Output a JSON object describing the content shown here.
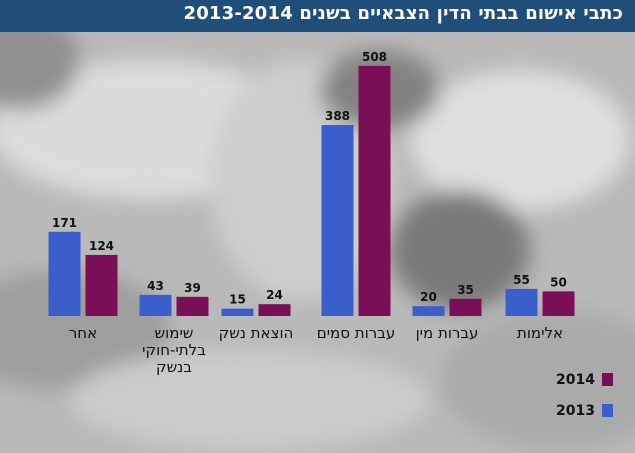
{
  "title": "כתבי אישום בבתי הדין הצבאיים בשנים 2013-2014",
  "colors": {
    "series_2013": "#3a5fcd",
    "series_2014": "#7b0f57",
    "title_bar": "#1f4e7a",
    "background": "#bdbdbd"
  },
  "chart_data": {
    "type": "bar",
    "title": "כתבי אישום בבתי הדין הצבאיים בשנים 2013-2014",
    "categories": [
      [
        "אחר"
      ],
      [
        "שימוש",
        "בלתי-חוקי",
        "בנשק"
      ],
      [
        "הוצאת נשק"
      ],
      [
        "עברות סמים"
      ],
      [
        "עברות מין"
      ],
      [
        "אלימות"
      ]
    ],
    "series": [
      {
        "name": "2013",
        "values": [
          171,
          43,
          15,
          388,
          20,
          55
        ]
      },
      {
        "name": "2014",
        "values": [
          124,
          39,
          24,
          508,
          35,
          50
        ]
      }
    ],
    "xlabel": "",
    "ylabel": "",
    "ylim": [
      0,
      520
    ],
    "grid": false,
    "data_labels": true,
    "legend_position": "bottom-right"
  }
}
